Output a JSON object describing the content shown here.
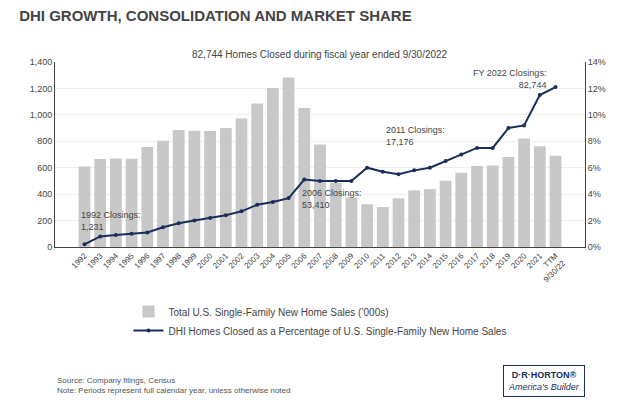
{
  "chart_data": {
    "type": "bar",
    "title": "DHI GROWTH, CONSOLIDATION AND MARKET SHARE",
    "subtitle": "82,744 Homes Closed during fiscal year ended 9/30/2022",
    "categories": [
      "1992",
      "1993",
      "1994",
      "1995",
      "1996",
      "1997",
      "1998",
      "1999",
      "2000",
      "2001",
      "2002",
      "2003",
      "2004",
      "2005",
      "2006",
      "2007",
      "2008",
      "2009",
      "2010",
      "2011",
      "2012",
      "2013",
      "2014",
      "2015",
      "2016",
      "2017",
      "2018",
      "2019",
      "2020",
      "2021",
      "TTM\n9/30/22"
    ],
    "series": [
      {
        "name": "Total U.S. Single-Family New Home Sales (’000s)",
        "type": "bar",
        "color": "#c8c8c8",
        "values": [
          609,
          666,
          670,
          667,
          757,
          804,
          886,
          880,
          877,
          901,
          973,
          1086,
          1203,
          1283,
          1051,
          776,
          485,
          375,
          323,
          302,
          368,
          429,
          438,
          502,
          561,
          613,
          617,
          682,
          822,
          762,
          690
        ]
      },
      {
        "name": "DHI Homes Closed as a Percentage of U.S. Single-Family New Home Sales",
        "type": "line",
        "axis": "y2",
        "color": "#1a2e5a",
        "marker": "circle",
        "values": [
          0.2,
          0.8,
          0.9,
          1.0,
          1.1,
          1.5,
          1.8,
          2.0,
          2.2,
          2.4,
          2.7,
          3.2,
          3.4,
          3.7,
          5.1,
          5.0,
          5.0,
          5.0,
          6.0,
          5.7,
          5.5,
          5.8,
          6.0,
          6.5,
          7.0,
          7.5,
          7.5,
          9.0,
          9.2,
          11.5,
          12.1
        ]
      }
    ],
    "ylim": [
      0,
      1400
    ],
    "yticks": [
      0,
      200,
      400,
      600,
      800,
      {
        "value": 1000,
        "label": "1,000"
      },
      {
        "value": 1200,
        "label": "1,200"
      },
      {
        "value": 1400,
        "label": "1,400"
      }
    ],
    "y2lim": [
      0,
      14
    ],
    "y2ticks": [
      {
        "value": 0,
        "label": "0%"
      },
      {
        "value": 2,
        "label": "2%"
      },
      {
        "value": 4,
        "label": "4%"
      },
      {
        "value": 6,
        "label": "6%"
      },
      {
        "value": 8,
        "label": "8%"
      },
      {
        "value": 10,
        "label": "10%"
      },
      {
        "value": 12,
        "label": "12%"
      },
      {
        "value": 14,
        "label": "14%"
      }
    ],
    "grid": true,
    "legend": "bottom",
    "annotations": [
      {
        "text": "1992 Closings:\n1,231",
        "x": "1992"
      },
      {
        "text": "2006 Closings:\n53,410",
        "x": "2006"
      },
      {
        "text": "2011 Closings:\n17,176",
        "x": "2011"
      },
      {
        "text": "FY 2022 Closings:\n82,744",
        "x": "TTM\n9/30/22"
      }
    ],
    "source": "Source: Company filings, Census\nNote: Periods represent full calendar year, unless otherwise noted",
    "logo": [
      "D·R·HORTON®",
      "America's Builder"
    ]
  }
}
